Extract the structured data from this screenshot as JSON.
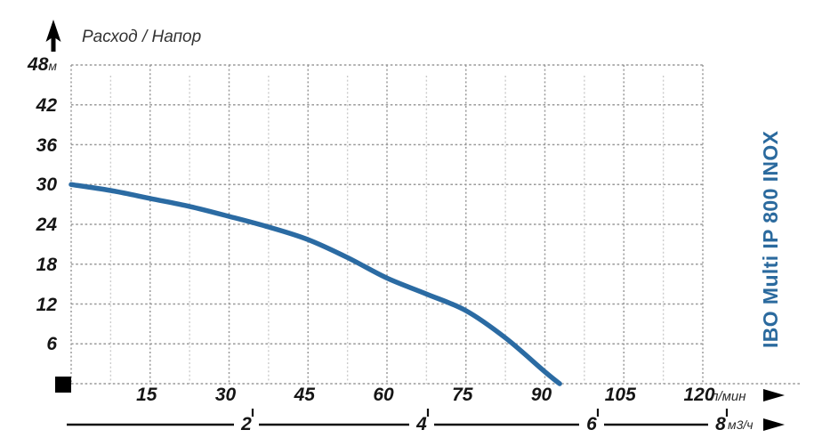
{
  "title": "Расход / Напор",
  "product_label": "IBO Multi IP 800 INOX",
  "colors": {
    "curve": "#2b6ba3",
    "product_text": "#2b6a9e",
    "grid_major": "#9a9a9a",
    "grid_minor": "#cccccc",
    "axis_black": "#111111"
  },
  "icons": {
    "y_axis_arrow": "up-arrow",
    "x_axis_arrow": "right-arrow",
    "x2_axis_arrow": "right-arrow",
    "origin_marker": "black-square"
  },
  "y_axis": {
    "top_value": "48",
    "top_unit": "м",
    "ticks": [
      42,
      36,
      30,
      24,
      18,
      12,
      6
    ]
  },
  "x_axis_lmin": {
    "ticks": [
      15,
      30,
      45,
      60,
      75,
      90,
      105,
      120
    ],
    "unit": "л/мин"
  },
  "x_axis_m3h": {
    "ticks": [
      2,
      4,
      6,
      8
    ],
    "unit": "м3/ч"
  },
  "chart_data": {
    "type": "line",
    "title": "Расход / Напор",
    "xlabel": "л/мин",
    "x2label": "м3/ч",
    "ylabel": "м",
    "xlim": [
      0,
      120
    ],
    "ylim": [
      0,
      48
    ],
    "x_major_step": 15,
    "x_minor_step": 7.5,
    "y_major_step": 6,
    "grid": "dotted",
    "legend_position": "right-vertical",
    "series": [
      {
        "name": "IBO Multi IP 800 INOX",
        "x": [
          0,
          7.5,
          15,
          22.5,
          30,
          37.5,
          45,
          52.5,
          60,
          67.5,
          75,
          82.5,
          90,
          92.8
        ],
        "y": [
          30,
          29.1,
          27.9,
          26.7,
          25.2,
          23.6,
          21.7,
          19.0,
          15.9,
          13.5,
          11.0,
          6.9,
          1.8,
          0
        ]
      }
    ]
  }
}
